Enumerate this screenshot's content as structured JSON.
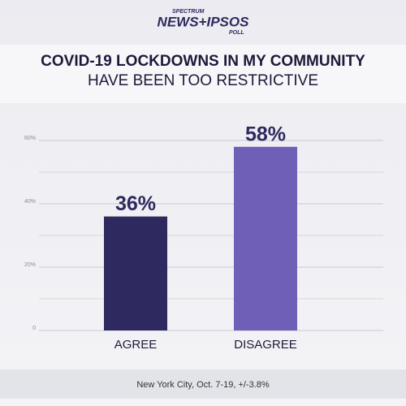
{
  "logo": {
    "top": "SPECTRUM",
    "main": "NEWS+IPSOS",
    "bottom": "POLL"
  },
  "chart_data": {
    "type": "bar",
    "title": "COVID-19 LOCKDOWNS IN MY COMMUNITY",
    "subtitle": "HAVE BEEN TOO RESTRICTIVE",
    "categories": [
      "AGREE",
      "DISAGREE"
    ],
    "values": [
      36,
      58
    ],
    "value_labels": [
      "36%",
      "58%"
    ],
    "colors": [
      "#2e2a5f",
      "#6f5fb6"
    ],
    "ylim": [
      0,
      65
    ],
    "yticks": [
      0,
      {
        "value": 20,
        "label": "20%"
      },
      {
        "value": 40,
        "label": "40%"
      },
      {
        "value": 60,
        "label": "60%"
      }
    ],
    "minor_yticks": [
      10,
      30,
      50
    ],
    "grid": true,
    "note": "New York City, Oct. 7-19, +/-3.8%"
  }
}
